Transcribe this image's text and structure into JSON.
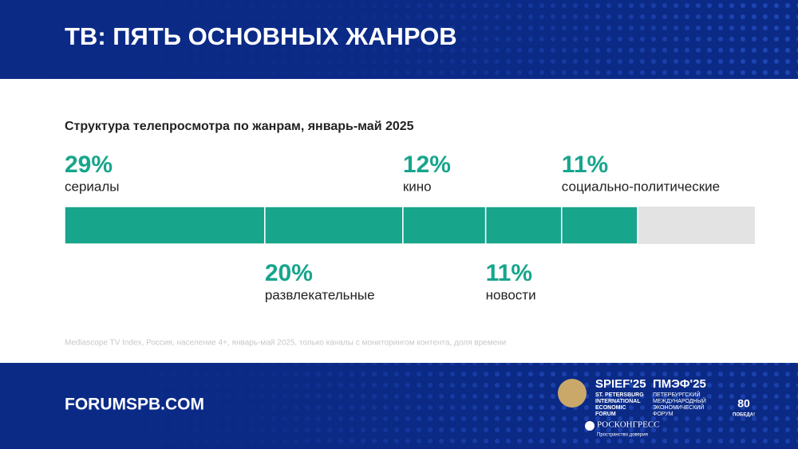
{
  "header": {
    "title": "ТВ: ПЯТЬ ОСНОВНЫХ ЖАНРОВ"
  },
  "chart_data": {
    "type": "stacked-bar",
    "subtitle": "Структура телепросмотра по жанрам, январь-май 2025",
    "categories": [
      "сериалы",
      "развлекательные",
      "кино",
      "новости",
      "социально-политические"
    ],
    "values": [
      29,
      20,
      12,
      11,
      11
    ],
    "value_labels": [
      "29%",
      "20%",
      "12%",
      "11%",
      "11%"
    ],
    "color": "#17a58c",
    "xlim": [
      0,
      100
    ],
    "source": "Mediascope TV Index, Россия, население 4+, январь-май 2025, только каналы с мониторингом контента, доля времени"
  },
  "footer": {
    "url": "FORUMSPB.COM",
    "spief": {
      "name": "SPIEF'25",
      "lines": [
        "ST. PETERSBURG",
        "INTERNATIONAL",
        "ECONOMIC",
        "FORUM"
      ]
    },
    "pmef": {
      "name": "ПМЭФ'25",
      "lines": [
        "ПЕТЕРБУРГСКИЙ",
        "МЕЖДУНАРОДНЫЙ",
        "ЭКОНОМИЧЕСКИЙ",
        "ФОРУМ"
      ]
    },
    "roscongress": {
      "name": "РОСКОНГРЕСС",
      "tagline": "Пространство доверия"
    },
    "victory": {
      "number": "80",
      "text": "ПОБЕДА!"
    }
  }
}
